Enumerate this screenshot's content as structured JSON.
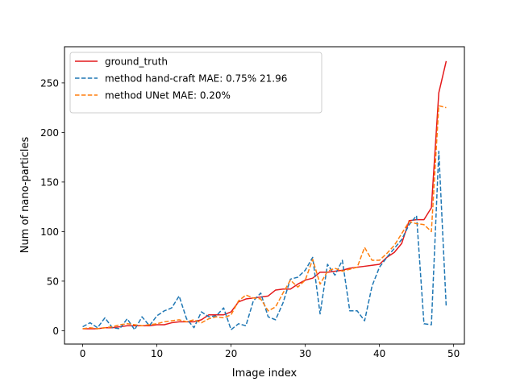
{
  "chart_data": {
    "type": "line",
    "title": "",
    "xlabel": "Image index",
    "ylabel": "Num of nano-particles",
    "xlim": [
      -2.45,
      51.45
    ],
    "ylim": [
      -13.5,
      286.5
    ],
    "xticks": [
      0,
      10,
      20,
      30,
      40,
      50
    ],
    "yticks": [
      0,
      50,
      100,
      150,
      200,
      250
    ],
    "grid": false,
    "legend_position": "top-left",
    "x": [
      0,
      1,
      2,
      3,
      4,
      5,
      6,
      7,
      8,
      9,
      10,
      11,
      12,
      13,
      14,
      15,
      16,
      17,
      18,
      19,
      20,
      21,
      22,
      23,
      24,
      25,
      26,
      27,
      28,
      29,
      30,
      31,
      32,
      33,
      34,
      35,
      36,
      37,
      38,
      39,
      40,
      41,
      42,
      43,
      44,
      45,
      46,
      47,
      48,
      49
    ],
    "series": [
      {
        "name": "ground_truth",
        "color": "#e41a1c",
        "style": "solid",
        "values": [
          2,
          2,
          2,
          3,
          3,
          4,
          5,
          5,
          5,
          5,
          6,
          6,
          8,
          9,
          9,
          9,
          11,
          16,
          16,
          16,
          19,
          29,
          32,
          33,
          34,
          35,
          41,
          42,
          42,
          47,
          51,
          53,
          59,
          59,
          60,
          61,
          63,
          64,
          65,
          66,
          67,
          74,
          79,
          88,
          111,
          112,
          112,
          124,
          240,
          272
        ]
      },
      {
        "name": "method hand-craft MAE: 0.75% 21.96",
        "color": "#1f77b4",
        "style": "dashed",
        "values": [
          4,
          8,
          3,
          13,
          3,
          2,
          12,
          1,
          14,
          5,
          15,
          20,
          23,
          35,
          12,
          3,
          19,
          14,
          15,
          23,
          1,
          7,
          5,
          30,
          38,
          14,
          11,
          28,
          52,
          54,
          61,
          74,
          17,
          67,
          56,
          71,
          20,
          20,
          10,
          45,
          64,
          74,
          83,
          92,
          107,
          116,
          7,
          6,
          181,
          24
        ]
      },
      {
        "name": "method UNet MAE: 0.20%",
        "color": "#ff7f0e",
        "style": "dashed",
        "values": [
          2,
          3,
          2,
          3,
          4,
          6,
          7,
          6,
          5,
          6,
          7,
          9,
          10,
          11,
          9,
          11,
          8,
          12,
          14,
          13,
          16,
          30,
          36,
          33,
          32,
          20,
          24,
          38,
          51,
          44,
          51,
          72,
          47,
          60,
          63,
          60,
          62,
          64,
          84,
          71,
          71,
          78,
          86,
          98,
          110,
          108,
          107,
          100,
          227,
          225
        ]
      }
    ]
  }
}
